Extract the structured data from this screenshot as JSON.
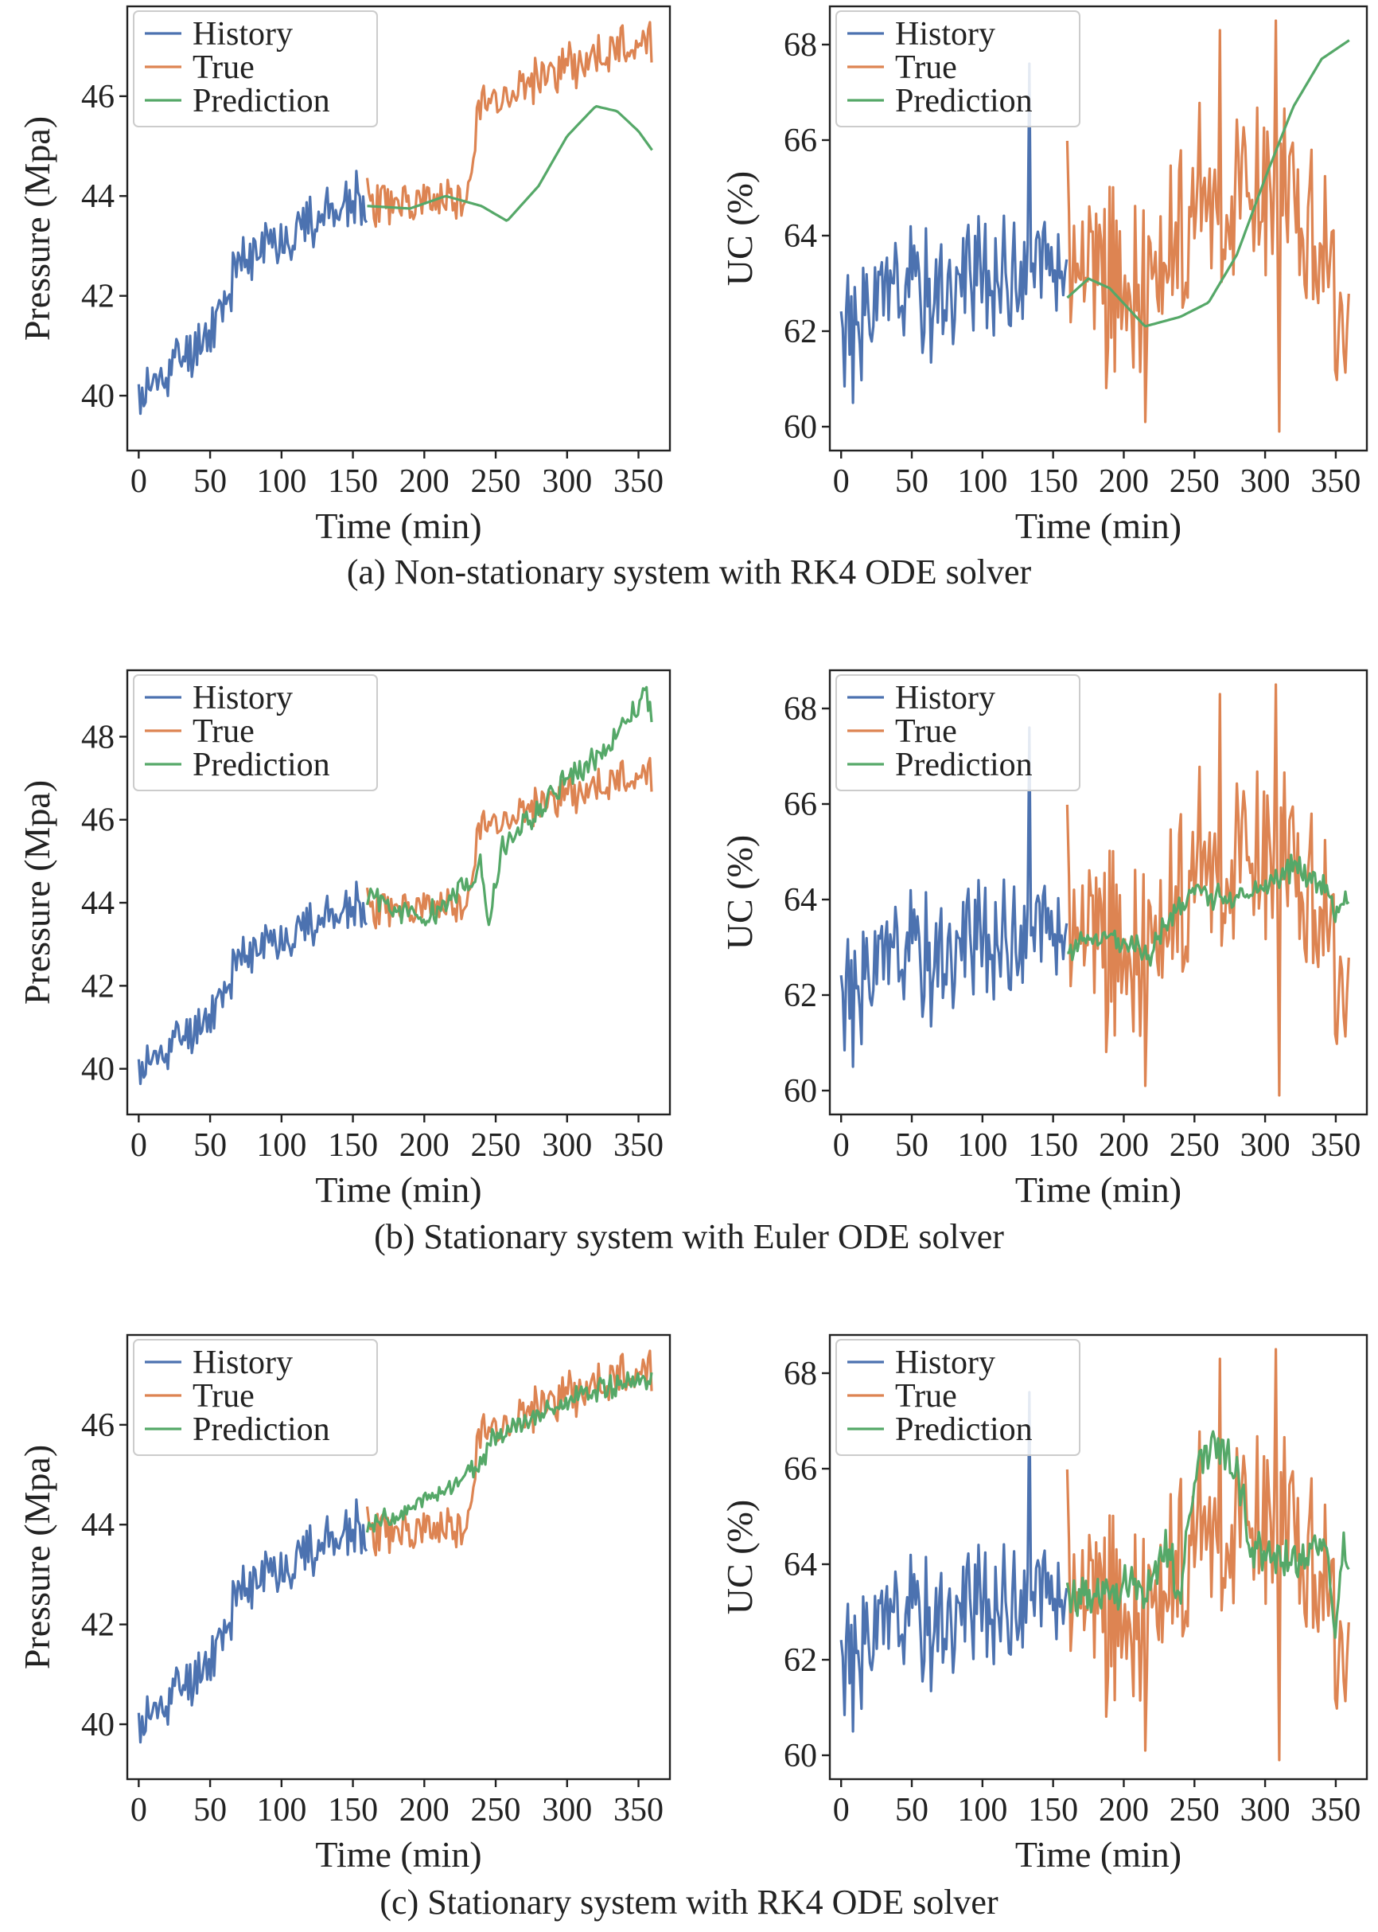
{
  "chart_data": [
    {
      "id": "a_pressure",
      "type": "line",
      "xlabel": "Time (min)",
      "ylabel": "Pressure (Mpa)",
      "xlim": [
        -8,
        372
      ],
      "ylim": [
        38.9,
        47.8
      ],
      "xticks": [
        0,
        50,
        100,
        150,
        200,
        250,
        300,
        350
      ],
      "yticks": [
        40,
        42,
        44,
        46
      ],
      "legend": [
        "History",
        "True",
        "Prediction"
      ],
      "legend_placement": "top-left",
      "series": [
        {
          "name": "History",
          "color": "#4c72b0",
          "noise": 0.55,
          "seed": 11,
          "points": [
            [
              0,
              39.9
            ],
            [
              20,
              40.5
            ],
            [
              40,
              41.0
            ],
            [
              55,
              41.6
            ],
            [
              70,
              42.6
            ],
            [
              85,
              42.9
            ],
            [
              100,
              43.2
            ],
            [
              120,
              43.5
            ],
            [
              140,
              43.8
            ],
            [
              160,
              43.8
            ]
          ]
        },
        {
          "name": "True",
          "color": "#dd8452",
          "noise": 0.45,
          "seed": 23,
          "points": [
            [
              160,
              43.9
            ],
            [
              200,
              43.8
            ],
            [
              230,
              44.0
            ],
            [
              238,
              45.8
            ],
            [
              260,
              46.1
            ],
            [
              300,
              46.6
            ],
            [
              330,
              46.9
            ],
            [
              360,
              47.2
            ]
          ]
        },
        {
          "name": "Prediction",
          "color": "#55a868",
          "noise": 0.0,
          "seed": 0,
          "points": [
            [
              160,
              43.8
            ],
            [
              190,
              43.75
            ],
            [
              215,
              44.0
            ],
            [
              240,
              43.8
            ],
            [
              258,
              43.5
            ],
            [
              280,
              44.2
            ],
            [
              300,
              45.2
            ],
            [
              320,
              45.8
            ],
            [
              335,
              45.7
            ],
            [
              350,
              45.3
            ],
            [
              360,
              44.9
            ]
          ]
        }
      ]
    },
    {
      "id": "a_uc",
      "type": "line",
      "xlabel": "Time (min)",
      "ylabel": "UC (%)",
      "xlim": [
        -8,
        372
      ],
      "ylim": [
        59.5,
        68.8
      ],
      "xticks": [
        0,
        50,
        100,
        150,
        200,
        250,
        300,
        350
      ],
      "yticks": [
        60,
        62,
        64,
        66,
        68
      ],
      "legend": [
        "History",
        "True",
        "Prediction"
      ],
      "legend_placement": "top-left",
      "series": [
        {
          "name": "History",
          "color": "#4c72b0",
          "noise": 1.3,
          "seed": 31,
          "points": [
            [
              0,
              62.2
            ],
            [
              50,
              62.8
            ],
            [
              100,
              63.1
            ],
            [
              160,
              63.4
            ]
          ],
          "spikes": [
            [
              133,
              67.6
            ],
            [
              8,
              60.5
            ]
          ]
        },
        {
          "name": "True",
          "color": "#dd8452",
          "noise": 2.0,
          "seed": 47,
          "points": [
            [
              160,
              63.5
            ],
            [
              200,
              63.0
            ],
            [
              260,
              64.5
            ],
            [
              300,
              65.0
            ],
            [
              345,
              64.5
            ],
            [
              350,
              62.0
            ],
            [
              360,
              62.2
            ]
          ],
          "spikes": [
            [
              215,
              60.1
            ],
            [
              310,
              59.9
            ],
            [
              268,
              68.3
            ],
            [
              307,
              68.5
            ]
          ]
        },
        {
          "name": "Prediction",
          "color": "#55a868",
          "noise": 0.0,
          "seed": 0,
          "points": [
            [
              160,
              62.7
            ],
            [
              175,
              63.1
            ],
            [
              190,
              62.9
            ],
            [
              215,
              62.1
            ],
            [
              240,
              62.3
            ],
            [
              260,
              62.6
            ],
            [
              280,
              63.6
            ],
            [
              300,
              65.2
            ],
            [
              320,
              66.7
            ],
            [
              340,
              67.7
            ],
            [
              360,
              68.1
            ]
          ]
        }
      ]
    },
    {
      "id": "b_pressure",
      "type": "line",
      "xlabel": "Time (min)",
      "ylabel": "Pressure (Mpa)",
      "xlim": [
        -8,
        372
      ],
      "ylim": [
        38.9,
        49.6
      ],
      "xticks": [
        0,
        50,
        100,
        150,
        200,
        250,
        300,
        350
      ],
      "yticks": [
        40,
        42,
        44,
        46,
        48
      ],
      "legend": [
        "History",
        "True",
        "Prediction"
      ],
      "legend_placement": "top-left",
      "series": [
        {
          "name": "History",
          "color": "#4c72b0",
          "noise": 0.55,
          "seed": 11,
          "points": [
            [
              0,
              39.9
            ],
            [
              20,
              40.5
            ],
            [
              40,
              41.0
            ],
            [
              55,
              41.6
            ],
            [
              70,
              42.6
            ],
            [
              85,
              42.9
            ],
            [
              100,
              43.2
            ],
            [
              120,
              43.5
            ],
            [
              140,
              43.8
            ],
            [
              160,
              43.8
            ]
          ]
        },
        {
          "name": "True",
          "color": "#dd8452",
          "noise": 0.45,
          "seed": 23,
          "points": [
            [
              160,
              43.9
            ],
            [
              200,
              43.8
            ],
            [
              230,
              44.0
            ],
            [
              238,
              45.8
            ],
            [
              260,
              46.1
            ],
            [
              300,
              46.6
            ],
            [
              330,
              46.9
            ],
            [
              360,
              47.2
            ]
          ]
        },
        {
          "name": "Prediction",
          "color": "#55a868",
          "noise": 0.3,
          "seed": 59,
          "points": [
            [
              160,
              44.2
            ],
            [
              200,
              43.6
            ],
            [
              230,
              44.4
            ],
            [
              240,
              44.9
            ],
            [
              245,
              43.6
            ],
            [
              255,
              45.3
            ],
            [
              280,
              46.3
            ],
            [
              300,
              47.0
            ],
            [
              330,
              47.8
            ],
            [
              350,
              48.8
            ],
            [
              355,
              49.1
            ],
            [
              360,
              48.3
            ]
          ]
        }
      ]
    },
    {
      "id": "b_uc",
      "type": "line",
      "xlabel": "Time (min)",
      "ylabel": "UC (%)",
      "xlim": [
        -8,
        372
      ],
      "ylim": [
        59.5,
        68.8
      ],
      "xticks": [
        0,
        50,
        100,
        150,
        200,
        250,
        300,
        350
      ],
      "yticks": [
        60,
        62,
        64,
        66,
        68
      ],
      "legend": [
        "History",
        "True",
        "Prediction"
      ],
      "legend_placement": "top-left",
      "series": [
        {
          "name": "History",
          "color": "#4c72b0",
          "noise": 1.3,
          "seed": 31,
          "points": [
            [
              0,
              62.2
            ],
            [
              50,
              62.8
            ],
            [
              100,
              63.1
            ],
            [
              160,
              63.4
            ]
          ],
          "spikes": [
            [
              133,
              67.6
            ],
            [
              8,
              60.5
            ]
          ]
        },
        {
          "name": "True",
          "color": "#dd8452",
          "noise": 2.0,
          "seed": 47,
          "points": [
            [
              160,
              63.5
            ],
            [
              200,
              63.0
            ],
            [
              260,
              64.5
            ],
            [
              300,
              65.0
            ],
            [
              345,
              64.5
            ],
            [
              350,
              62.0
            ],
            [
              360,
              62.2
            ]
          ],
          "spikes": [
            [
              215,
              60.1
            ],
            [
              310,
              59.9
            ],
            [
              268,
              68.3
            ],
            [
              307,
              68.5
            ]
          ]
        },
        {
          "name": "Prediction",
          "color": "#55a868",
          "noise": 0.25,
          "seed": 71,
          "points": [
            [
              160,
              63.0
            ],
            [
              190,
              63.2
            ],
            [
              212,
              63.0
            ],
            [
              218,
              62.7
            ],
            [
              230,
              63.6
            ],
            [
              250,
              64.2
            ],
            [
              270,
              64.0
            ],
            [
              300,
              64.3
            ],
            [
              320,
              64.7
            ],
            [
              345,
              64.3
            ],
            [
              350,
              63.6
            ],
            [
              360,
              64.2
            ]
          ]
        }
      ]
    },
    {
      "id": "c_pressure",
      "type": "line",
      "xlabel": "Time (min)",
      "ylabel": "Pressure (Mpa)",
      "xlim": [
        -8,
        372
      ],
      "ylim": [
        38.9,
        47.8
      ],
      "xticks": [
        0,
        50,
        100,
        150,
        200,
        250,
        300,
        350
      ],
      "yticks": [
        40,
        42,
        44,
        46
      ],
      "legend": [
        "History",
        "True",
        "Prediction"
      ],
      "legend_placement": "top-left",
      "series": [
        {
          "name": "History",
          "color": "#4c72b0",
          "noise": 0.55,
          "seed": 11,
          "points": [
            [
              0,
              39.9
            ],
            [
              20,
              40.5
            ],
            [
              40,
              41.0
            ],
            [
              55,
              41.6
            ],
            [
              70,
              42.6
            ],
            [
              85,
              42.9
            ],
            [
              100,
              43.2
            ],
            [
              120,
              43.5
            ],
            [
              140,
              43.8
            ],
            [
              160,
              43.8
            ]
          ]
        },
        {
          "name": "True",
          "color": "#dd8452",
          "noise": 0.45,
          "seed": 23,
          "points": [
            [
              160,
              43.9
            ],
            [
              200,
              43.8
            ],
            [
              230,
              44.0
            ],
            [
              238,
              45.8
            ],
            [
              260,
              46.1
            ],
            [
              300,
              46.6
            ],
            [
              330,
              46.9
            ],
            [
              360,
              47.2
            ]
          ]
        },
        {
          "name": "Prediction",
          "color": "#55a868",
          "noise": 0.2,
          "seed": 83,
          "points": [
            [
              160,
              44.0
            ],
            [
              190,
              44.3
            ],
            [
              220,
              44.8
            ],
            [
              240,
              45.3
            ],
            [
              250,
              45.8
            ],
            [
              280,
              46.2
            ],
            [
              320,
              46.7
            ],
            [
              350,
              46.9
            ],
            [
              360,
              46.8
            ]
          ]
        }
      ]
    },
    {
      "id": "c_uc",
      "type": "line",
      "xlabel": "Time (min)",
      "ylabel": "UC (%)",
      "xlim": [
        -8,
        372
      ],
      "ylim": [
        59.5,
        68.8
      ],
      "xticks": [
        0,
        50,
        100,
        150,
        200,
        250,
        300,
        350
      ],
      "yticks": [
        60,
        62,
        64,
        66,
        68
      ],
      "legend": [
        "History",
        "True",
        "Prediction"
      ],
      "legend_placement": "top-left",
      "series": [
        {
          "name": "History",
          "color": "#4c72b0",
          "noise": 1.3,
          "seed": 31,
          "points": [
            [
              0,
              62.2
            ],
            [
              50,
              62.8
            ],
            [
              100,
              63.1
            ],
            [
              160,
              63.4
            ]
          ],
          "spikes": [
            [
              133,
              67.6
            ],
            [
              8,
              60.5
            ]
          ]
        },
        {
          "name": "True",
          "color": "#dd8452",
          "noise": 2.0,
          "seed": 47,
          "points": [
            [
              160,
              63.5
            ],
            [
              200,
              63.0
            ],
            [
              260,
              64.5
            ],
            [
              300,
              65.0
            ],
            [
              345,
              64.5
            ],
            [
              350,
              62.0
            ],
            [
              360,
              62.2
            ]
          ],
          "spikes": [
            [
              215,
              60.1
            ],
            [
              310,
              59.9
            ],
            [
              268,
              68.3
            ],
            [
              307,
              68.5
            ]
          ]
        },
        {
          "name": "Prediction",
          "color": "#55a868",
          "noise": 0.5,
          "seed": 97,
          "points": [
            [
              160,
              63.3
            ],
            [
              200,
              63.5
            ],
            [
              220,
              63.6
            ],
            [
              230,
              64.5
            ],
            [
              240,
              63.5
            ],
            [
              250,
              65.8
            ],
            [
              262,
              66.6
            ],
            [
              280,
              66.0
            ],
            [
              290,
              64.2
            ],
            [
              320,
              64.0
            ],
            [
              345,
              64.2
            ],
            [
              350,
              62.5
            ],
            [
              355,
              64.5
            ],
            [
              360,
              63.7
            ]
          ]
        }
      ]
    }
  ],
  "captions": [
    "(a) Non-stationary system with RK4 ODE solver",
    "(b) Stationary system with Euler ODE solver",
    "(c) Stationary system with RK4 ODE solver"
  ]
}
